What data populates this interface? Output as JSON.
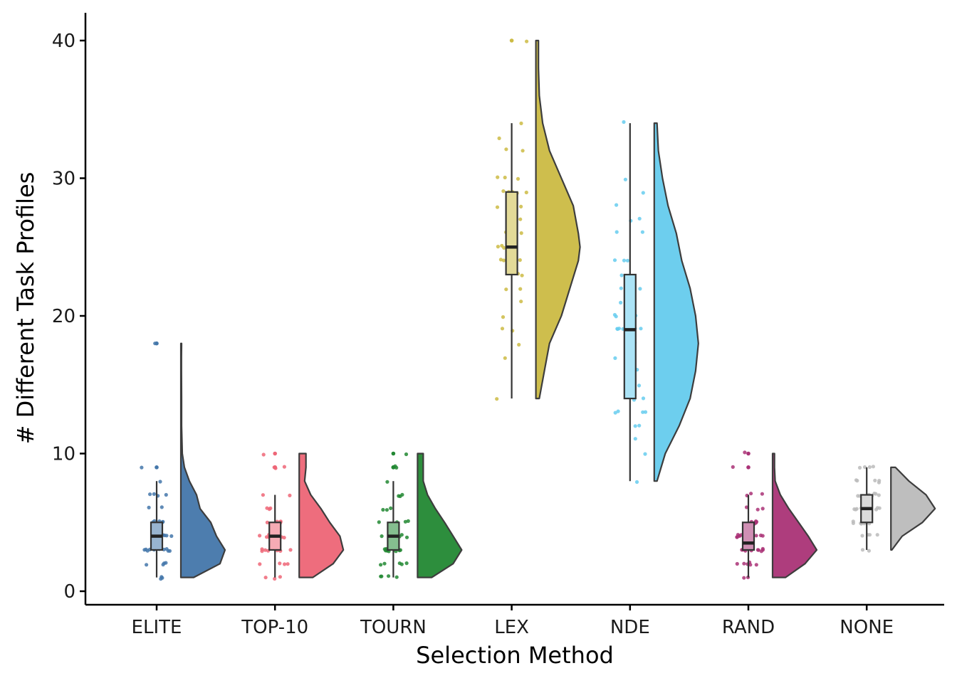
{
  "chart_data": {
    "type": "raincloud",
    "title": "",
    "xlabel": "Selection Method",
    "ylabel": "# Different Task Profiles",
    "ylim": [
      -1,
      42
    ],
    "yticks": [
      0,
      10,
      20,
      30,
      40
    ],
    "grid": false,
    "legend": "none",
    "categories": [
      "ELITE",
      "TOP-10",
      "TOURN",
      "LEX",
      "NDE",
      "RAND",
      "NONE"
    ],
    "series": [
      {
        "name": "ELITE",
        "color": "#4477AA",
        "box": {
          "min": 1,
          "q1": 3,
          "median": 4,
          "q3": 5,
          "max": 8
        },
        "outliers": [
          9,
          18
        ],
        "points": [
          1,
          1,
          1,
          2,
          2,
          2,
          2,
          3,
          3,
          3,
          3,
          3,
          3,
          3,
          3,
          3,
          3,
          4,
          4,
          4,
          4,
          4,
          4,
          4,
          5,
          5,
          5,
          5,
          5,
          5,
          6,
          6,
          7,
          7,
          7,
          7,
          8,
          9,
          18
        ],
        "density": [
          [
            1,
            0.18
          ],
          [
            2,
            0.55
          ],
          [
            3,
            0.62
          ],
          [
            4,
            0.5
          ],
          [
            5,
            0.42
          ],
          [
            6,
            0.27
          ],
          [
            7,
            0.22
          ],
          [
            8,
            0.12
          ],
          [
            9,
            0.05
          ],
          [
            10,
            0.02
          ],
          [
            12,
            0.01
          ],
          [
            14,
            0.01
          ],
          [
            16,
            0.008
          ],
          [
            17,
            0.008
          ],
          [
            18,
            0.01
          ]
        ]
      },
      {
        "name": "TOP-10",
        "color": "#EE6677",
        "box": {
          "min": 1,
          "q1": 3,
          "median": 4,
          "q3": 5,
          "max": 7
        },
        "outliers": [
          9,
          9,
          10
        ],
        "points": [
          1,
          1,
          1,
          2,
          2,
          2,
          2,
          3,
          3,
          3,
          3,
          3,
          3,
          3,
          4,
          4,
          4,
          4,
          4,
          4,
          4,
          4,
          4,
          5,
          5,
          5,
          5,
          5,
          5,
          5,
          6,
          6,
          6,
          7,
          7,
          9,
          9,
          9,
          10
        ],
        "density": [
          [
            1,
            0.2
          ],
          [
            2,
            0.5
          ],
          [
            3,
            0.65
          ],
          [
            4,
            0.6
          ],
          [
            5,
            0.45
          ],
          [
            6,
            0.32
          ],
          [
            7,
            0.17
          ],
          [
            8,
            0.08
          ],
          [
            9,
            0.1
          ],
          [
            10,
            0.1
          ]
        ]
      },
      {
        "name": "TOURN",
        "color": "#228833",
        "box": {
          "min": 1,
          "q1": 3,
          "median": 4,
          "q3": 5,
          "max": 8
        },
        "outliers": [
          9,
          9,
          10
        ],
        "points": [
          1,
          1,
          1,
          1,
          2,
          2,
          2,
          2,
          2,
          3,
          3,
          3,
          3,
          3,
          3,
          3,
          3,
          3,
          4,
          4,
          4,
          4,
          4,
          4,
          4,
          4,
          5,
          5,
          5,
          5,
          5,
          6,
          6,
          6,
          7,
          7,
          7,
          8,
          9,
          9,
          10
        ],
        "density": [
          [
            1,
            0.2
          ],
          [
            2,
            0.5
          ],
          [
            3,
            0.62
          ],
          [
            4,
            0.5
          ],
          [
            5,
            0.38
          ],
          [
            6,
            0.25
          ],
          [
            7,
            0.14
          ],
          [
            8,
            0.08
          ],
          [
            9,
            0.08
          ],
          [
            10,
            0.08
          ]
        ]
      },
      {
        "name": "LEX",
        "color": "#CCBB44",
        "box": {
          "min": 14,
          "q1": 23,
          "median": 25,
          "q3": 29,
          "max": 34
        },
        "outliers": [
          40
        ],
        "points": [
          14,
          17,
          18,
          19,
          19,
          20,
          21,
          22,
          22,
          23,
          23,
          24,
          24,
          24,
          25,
          25,
          25,
          25,
          25,
          26,
          26,
          26,
          26,
          26,
          27,
          27,
          28,
          28,
          29,
          29,
          29,
          29,
          29,
          29,
          30,
          30,
          30,
          32,
          32,
          33,
          34,
          40
        ],
        "density": [
          [
            14,
            0.02
          ],
          [
            16,
            0.05
          ],
          [
            18,
            0.08
          ],
          [
            20,
            0.15
          ],
          [
            22,
            0.2
          ],
          [
            24,
            0.25
          ],
          [
            25,
            0.26
          ],
          [
            26,
            0.25
          ],
          [
            28,
            0.22
          ],
          [
            30,
            0.15
          ],
          [
            32,
            0.08
          ],
          [
            34,
            0.04
          ],
          [
            36,
            0.02
          ],
          [
            38,
            0.015
          ],
          [
            40,
            0.015
          ]
        ]
      },
      {
        "name": "NDE",
        "color": "#66CCEE",
        "box": {
          "min": 8,
          "q1": 14,
          "median": 19,
          "q3": 23,
          "max": 34
        },
        "outliers": [],
        "points": [
          8,
          10,
          11,
          12,
          12,
          13,
          13,
          13,
          13,
          14,
          14,
          14,
          15,
          15,
          16,
          17,
          18,
          18,
          19,
          19,
          19,
          19,
          19,
          19,
          19,
          19,
          20,
          20,
          20,
          21,
          22,
          22,
          23,
          24,
          24,
          24,
          26,
          26,
          27,
          27,
          28,
          29,
          30,
          34
        ],
        "density": [
          [
            8,
            0.01
          ],
          [
            10,
            0.04
          ],
          [
            12,
            0.09
          ],
          [
            14,
            0.13
          ],
          [
            16,
            0.15
          ],
          [
            18,
            0.16
          ],
          [
            20,
            0.15
          ],
          [
            22,
            0.13
          ],
          [
            24,
            0.1
          ],
          [
            26,
            0.08
          ],
          [
            28,
            0.05
          ],
          [
            30,
            0.03
          ],
          [
            32,
            0.015
          ],
          [
            34,
            0.01
          ]
        ]
      },
      {
        "name": "RAND",
        "color": "#AA3377",
        "box": {
          "min": 1,
          "q1": 3,
          "median": 3.5,
          "q3": 5,
          "max": 7
        },
        "outliers": [
          9,
          10
        ],
        "points": [
          1,
          1,
          2,
          2,
          2,
          2,
          2,
          2,
          3,
          3,
          3,
          3,
          3,
          3,
          3,
          3,
          3,
          3,
          4,
          4,
          4,
          4,
          4,
          4,
          4,
          4,
          4,
          5,
          5,
          5,
          5,
          5,
          5,
          6,
          6,
          6,
          7,
          7,
          7,
          9,
          10
        ],
        "density": [
          [
            1,
            0.2
          ],
          [
            2,
            0.5
          ],
          [
            3,
            0.68
          ],
          [
            4,
            0.55
          ],
          [
            5,
            0.4
          ],
          [
            6,
            0.25
          ],
          [
            7,
            0.12
          ],
          [
            8,
            0.04
          ],
          [
            9,
            0.03
          ],
          [
            10,
            0.03
          ]
        ]
      },
      {
        "name": "NONE",
        "color": "#BBBBBB",
        "box": {
          "min": 3,
          "q1": 5,
          "median": 6,
          "q3": 7,
          "max": 9
        },
        "outliers": [],
        "points": [
          3,
          3,
          4,
          4,
          4,
          4,
          5,
          5,
          5,
          5,
          5,
          5,
          5,
          6,
          6,
          6,
          6,
          6,
          6,
          6,
          6,
          6,
          6,
          6,
          7,
          7,
          7,
          7,
          7,
          7,
          7,
          8,
          8,
          8,
          8,
          8,
          9,
          9,
          9,
          9
        ],
        "density": [
          [
            3,
            0.02
          ],
          [
            4,
            0.25
          ],
          [
            5,
            0.7
          ],
          [
            6,
            0.98
          ],
          [
            7,
            0.78
          ],
          [
            8,
            0.4
          ],
          [
            9,
            0.1
          ]
        ]
      }
    ]
  }
}
